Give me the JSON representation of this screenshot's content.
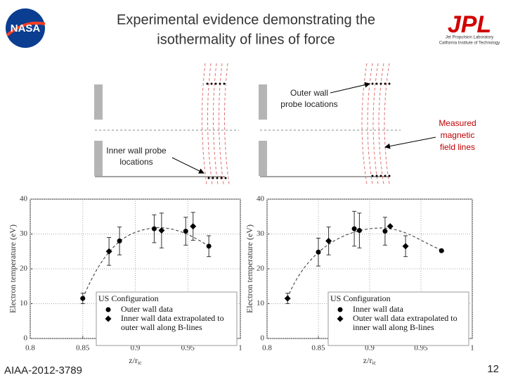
{
  "slide": {
    "title_line1": "Experimental evidence demonstrating the",
    "title_line2": "isothermality of lines of force",
    "logo_left": "NASA",
    "logo_right": "JPL",
    "logo_right_line1": "Jet Propulsion Laboratory",
    "logo_right_line2": "California Institute of Technology",
    "outer_label_line1": "Outer wall",
    "outer_label_line2": "probe locations",
    "inner_label_line1": "Inner wall probe",
    "inner_label_line2": "locations",
    "field_label_line1": "Measured",
    "field_label_line2": "magnetic",
    "field_label_line3": "field lines",
    "footer_left": "AIAA-2012-3789",
    "page_number": "12"
  },
  "chart_data": [
    {
      "type": "scatter",
      "ylabel": "Electron temperature (eV)",
      "xlabel": "z/r",
      "xlabel_sub": "ic",
      "xlim": [
        0.8,
        1
      ],
      "xticks": [
        0.8,
        0.85,
        0.9,
        0.95,
        1
      ],
      "ylim": [
        0,
        40
      ],
      "yticks": [
        0,
        10,
        20,
        30,
        40
      ],
      "grid": true,
      "legend_title": "US Configuration",
      "series": [
        {
          "name": "Outer wall data",
          "marker": "circle",
          "color": "#000000",
          "x": [
            0.85,
            0.885,
            0.918,
            0.948,
            0.97
          ],
          "values": [
            11.5,
            28,
            31.5,
            30.8,
            26.5
          ],
          "errors": [
            1.5,
            4,
            4,
            4,
            3
          ]
        },
        {
          "name_line1": "Inner wall data extrapolated to",
          "name_line2": "outer wall along B-lines",
          "marker": "diamond",
          "color": "#000000",
          "x": [
            0.875,
            0.925,
            0.955
          ],
          "values": [
            25,
            31,
            32.2
          ],
          "errors": [
            4,
            5,
            4
          ]
        }
      ]
    },
    {
      "type": "scatter",
      "ylabel": "Electron temperature (eV)",
      "xlabel": "z/r",
      "xlabel_sub": "ic",
      "xlim": [
        0.8,
        1
      ],
      "xticks": [
        0.8,
        0.85,
        0.9,
        0.95,
        1
      ],
      "ylim": [
        0,
        40
      ],
      "yticks": [
        0,
        10,
        20,
        30,
        40
      ],
      "grid": true,
      "legend_title": "US Configuration",
      "series": [
        {
          "name": "Inner wall data",
          "marker": "circle",
          "color": "#000000",
          "x": [
            0.85,
            0.885,
            0.89,
            0.915,
            0.97
          ],
          "values": [
            24.8,
            31.5,
            31,
            30.8,
            25.2
          ],
          "errors": [
            4,
            5,
            5,
            4,
            null
          ]
        },
        {
          "name_line1": "Outer wall data extrapolated to",
          "name_line2": "inner wall along B-lines",
          "marker": "diamond",
          "color": "#000000",
          "x": [
            0.82,
            0.86,
            0.92,
            0.935
          ],
          "values": [
            11.5,
            28,
            32.2,
            26.5
          ],
          "errors": [
            1.5,
            4,
            null,
            3
          ]
        }
      ]
    }
  ]
}
